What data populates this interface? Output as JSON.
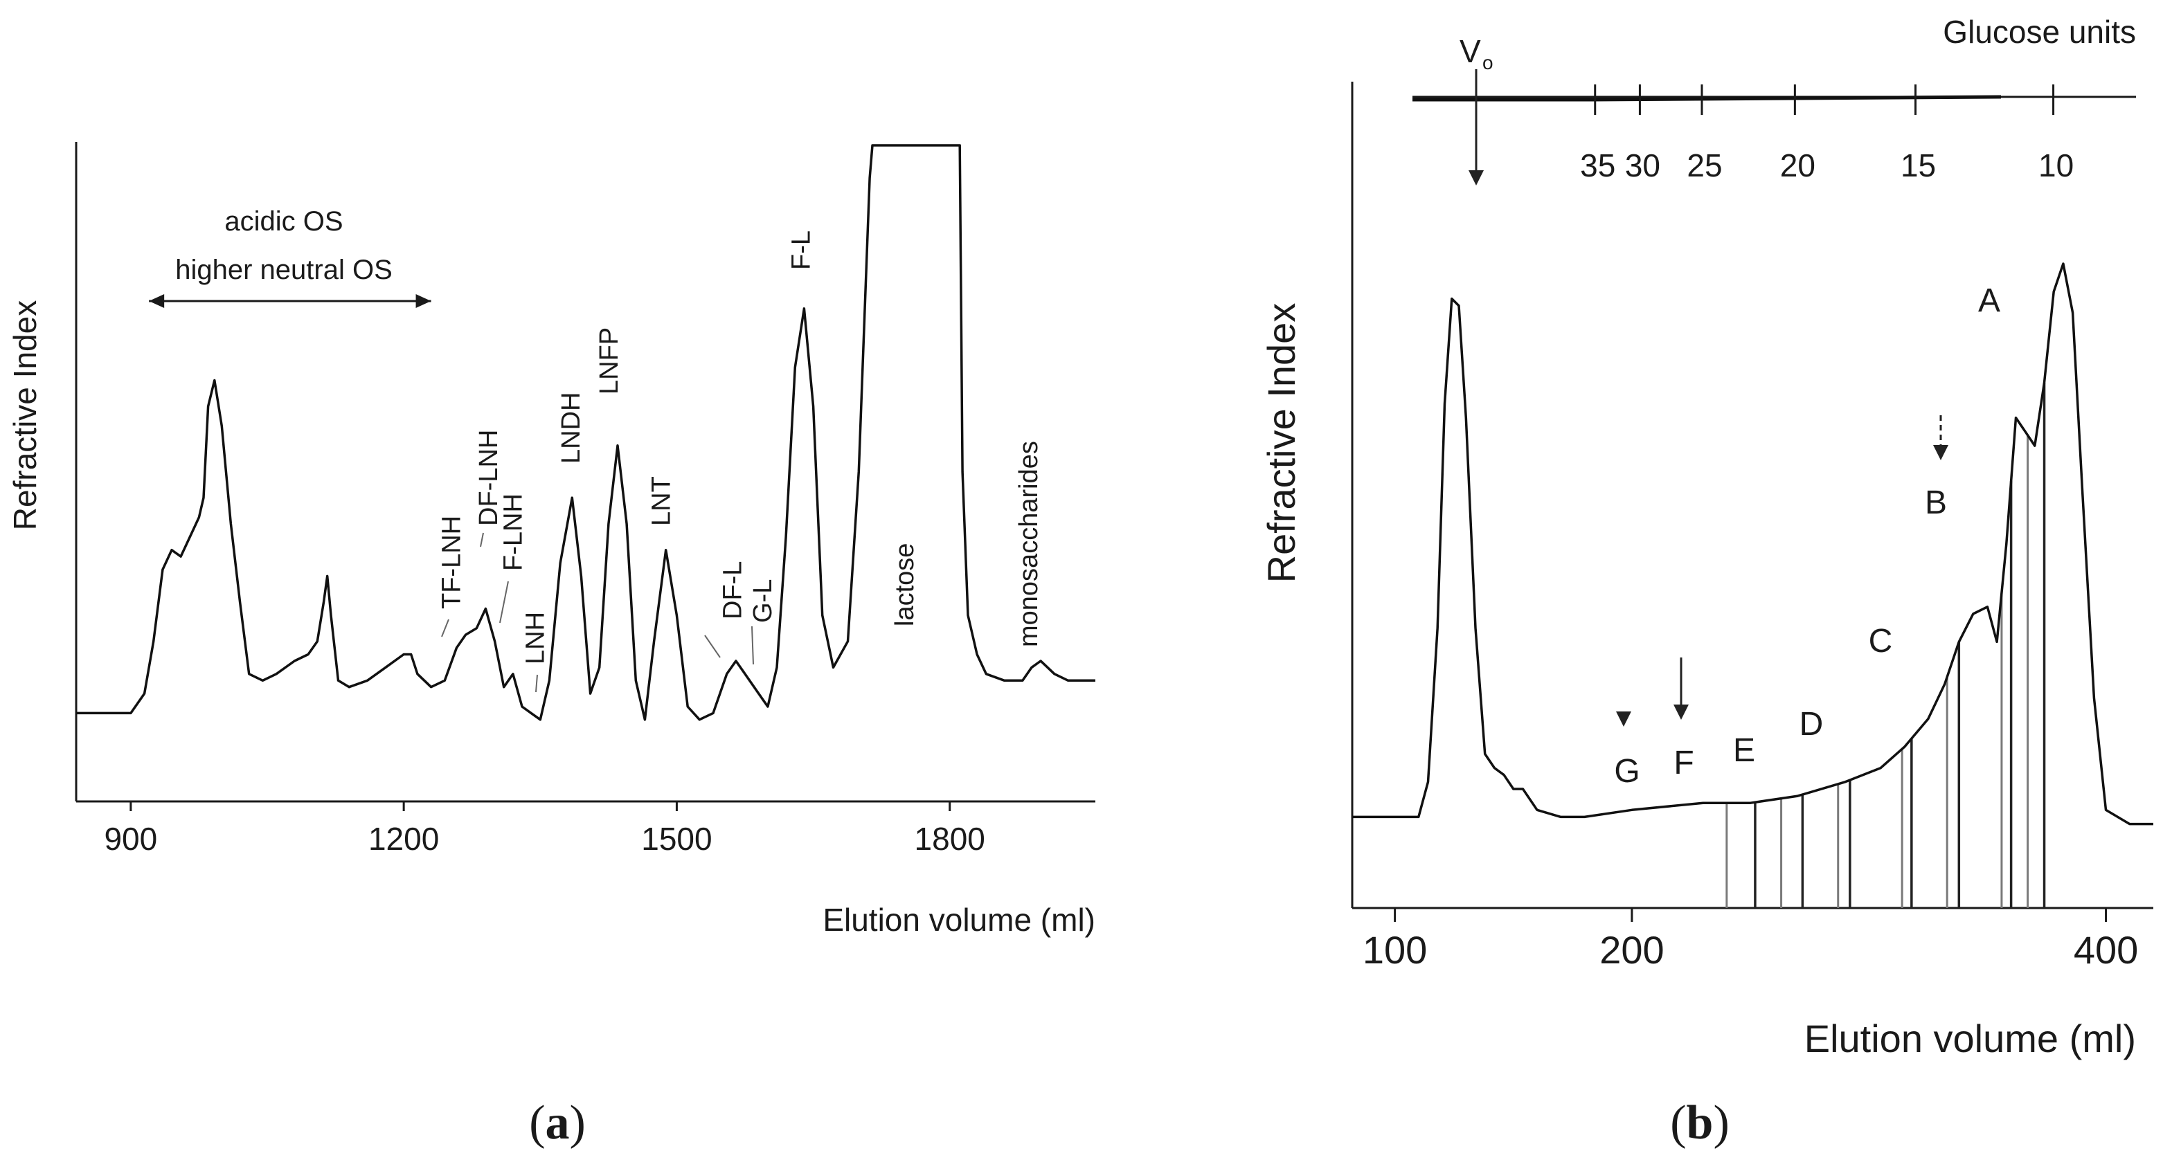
{
  "chart_data": [
    {
      "type": "line",
      "panel": "(a)",
      "xlabel": "Elution volume (ml)",
      "ylabel": "Refractive Index",
      "xlim": [
        840,
        1960
      ],
      "ylim": [
        0,
        100
      ],
      "x_ticks": [
        900,
        1200,
        1500,
        1800
      ],
      "grid": false,
      "legend": "none",
      "range_annotation": {
        "lines": [
          "acidic OS",
          "higher neutral OS"
        ],
        "x_start": 920,
        "x_end": 1230
      },
      "peak_labels": [
        {
          "text": "TF-LNH",
          "x": 1262
        },
        {
          "text": "DF-LNH",
          "x": 1292
        },
        {
          "text": "F-LNH",
          "x": 1322
        },
        {
          "text": "LNH",
          "x": 1348
        },
        {
          "text": "LNDH",
          "x": 1384
        },
        {
          "text": "LNFP",
          "x": 1432
        },
        {
          "text": "LNT",
          "x": 1488
        },
        {
          "text": "DF-L",
          "x": 1560
        },
        {
          "text": "G-L",
          "x": 1598
        },
        {
          "text": "F-L",
          "x": 1640
        },
        {
          "text": "lactose",
          "x": 1760
        },
        {
          "text": "monosaccharides",
          "x": 1890
        }
      ],
      "series": [
        {
          "x": [
            840,
            900,
            915,
            925,
            935,
            945,
            955,
            965,
            975,
            980,
            985,
            992,
            1000,
            1010,
            1020,
            1030,
            1045,
            1060,
            1080,
            1095,
            1105,
            1112,
            1116,
            1120,
            1128,
            1140,
            1160,
            1180,
            1200,
            1208,
            1215,
            1230,
            1245,
            1258,
            1268,
            1280,
            1290,
            1300,
            1310,
            1320,
            1330,
            1340,
            1350,
            1360,
            1372,
            1385,
            1395,
            1405,
            1415,
            1425,
            1435,
            1445,
            1455,
            1465,
            1475,
            1488,
            1500,
            1512,
            1525,
            1540,
            1555,
            1565,
            1575,
            1590,
            1600,
            1610,
            1620,
            1630,
            1640,
            1650,
            1660,
            1672,
            1688,
            1700,
            1708,
            1712,
            1715,
            1716,
            1810,
            1811,
            1814,
            1820,
            1830,
            1840,
            1860,
            1880,
            1890,
            1900,
            1915,
            1930,
            1960
          ],
          "y": [
            13,
            13,
            16,
            24,
            35,
            38,
            37,
            40,
            43,
            46,
            60,
            64,
            57,
            42,
            30,
            19,
            18,
            19,
            21,
            22,
            24,
            30,
            34,
            28,
            18,
            17,
            18,
            20,
            22,
            22,
            19,
            17,
            18,
            23,
            25,
            26,
            29,
            24,
            17,
            19,
            14,
            13,
            12,
            18,
            36,
            46,
            34,
            16,
            20,
            42,
            54,
            42,
            18,
            12,
            24,
            38,
            28,
            14,
            12,
            13,
            19,
            21,
            19,
            16,
            14,
            20,
            40,
            66,
            75,
            60,
            28,
            20,
            24,
            50,
            80,
            95,
            100,
            100,
            100,
            100,
            50,
            28,
            22,
            19,
            18,
            18,
            20,
            21,
            19,
            18,
            18
          ]
        }
      ]
    },
    {
      "type": "line",
      "panel": "(b)",
      "xlabel": "Elution volume (ml)",
      "ylabel": "Refractive Index",
      "xlim": [
        82,
        420
      ],
      "ylim": [
        0,
        100
      ],
      "x_ticks": [
        100,
        200,
        400
      ],
      "grid": false,
      "legend": "none",
      "top_axis": {
        "title": "Glucose units",
        "marker": "V",
        "marker_subscript": "o",
        "marker_x": 118,
        "ticks": [
          {
            "label": "35",
            "x": 153
          },
          {
            "label": "30",
            "x": 166
          },
          {
            "label": "25",
            "x": 184
          },
          {
            "label": "20",
            "x": 211
          },
          {
            "label": "15",
            "x": 246
          },
          {
            "label": "10",
            "x": 286
          }
        ]
      },
      "peak_labels": [
        {
          "text": "A",
          "x": 373
        },
        {
          "text": "B",
          "x": 353
        },
        {
          "text": "C",
          "x": 325
        },
        {
          "text": "D",
          "x": 300
        },
        {
          "text": "E",
          "x": 282
        },
        {
          "text": "F",
          "x": 265
        },
        {
          "text": "G",
          "x": 246
        }
      ],
      "fraction_lines_x": [
        240,
        252,
        263,
        272,
        287,
        292,
        314,
        318,
        333,
        338,
        356,
        360,
        367,
        374
      ],
      "arrows_x": [
        118,
        266,
        245,
        358
      ],
      "series": [
        {
          "x": [
            82,
            100,
            110,
            114,
            118,
            121,
            124,
            127,
            130,
            134,
            138,
            142,
            146,
            150,
            154,
            160,
            170,
            180,
            200,
            230,
            250,
            270,
            290,
            305,
            315,
            325,
            332,
            338,
            344,
            350,
            354,
            358,
            362,
            366,
            370,
            374,
            378,
            382,
            386,
            390,
            395,
            400,
            410,
            420
          ],
          "y": [
            13,
            13,
            13,
            18,
            40,
            72,
            87,
            86,
            70,
            40,
            22,
            20,
            19,
            17,
            17,
            14,
            13,
            13,
            14,
            15,
            15,
            16,
            18,
            20,
            23,
            27,
            32,
            38,
            42,
            43,
            38,
            52,
            70,
            68,
            66,
            75,
            88,
            92,
            85,
            60,
            30,
            14,
            12,
            12
          ]
        }
      ]
    }
  ],
  "panel_labels": {
    "a": {
      "open": "(",
      "letter": "a",
      "close": ")"
    },
    "b": {
      "open": "(",
      "letter": "b",
      "close": ")"
    }
  }
}
